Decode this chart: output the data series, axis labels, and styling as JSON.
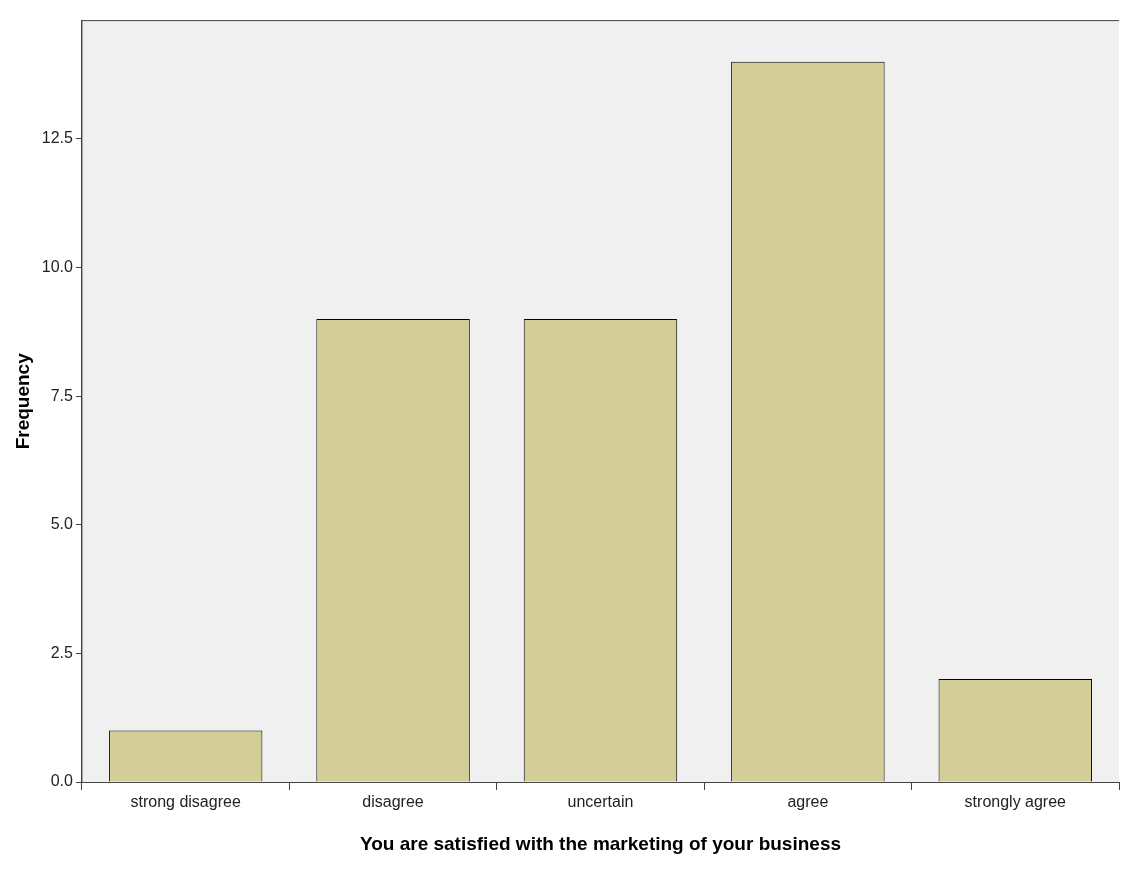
{
  "chart_data": {
    "type": "bar",
    "xlabel": "You are satisfied with the marketing of your business",
    "ylabel": "Frequency",
    "categories": [
      "strong disagree",
      "disagree",
      "uncertain",
      "agree",
      "strongly agree"
    ],
    "values": [
      1,
      9,
      9,
      14,
      2
    ],
    "color": "#d3ce97",
    "ylim": [
      0,
      14.8
    ],
    "yticks": [
      {
        "value": 0,
        "label": "0.0"
      },
      {
        "value": 2.5,
        "label": "2.5"
      },
      {
        "value": 5,
        "label": "5.0"
      },
      {
        "value": 7.5,
        "label": "7.5"
      },
      {
        "value": 10,
        "label": "10.0"
      },
      {
        "value": 12.5,
        "label": "12.5"
      }
    ],
    "grid": false,
    "legend": false
  }
}
